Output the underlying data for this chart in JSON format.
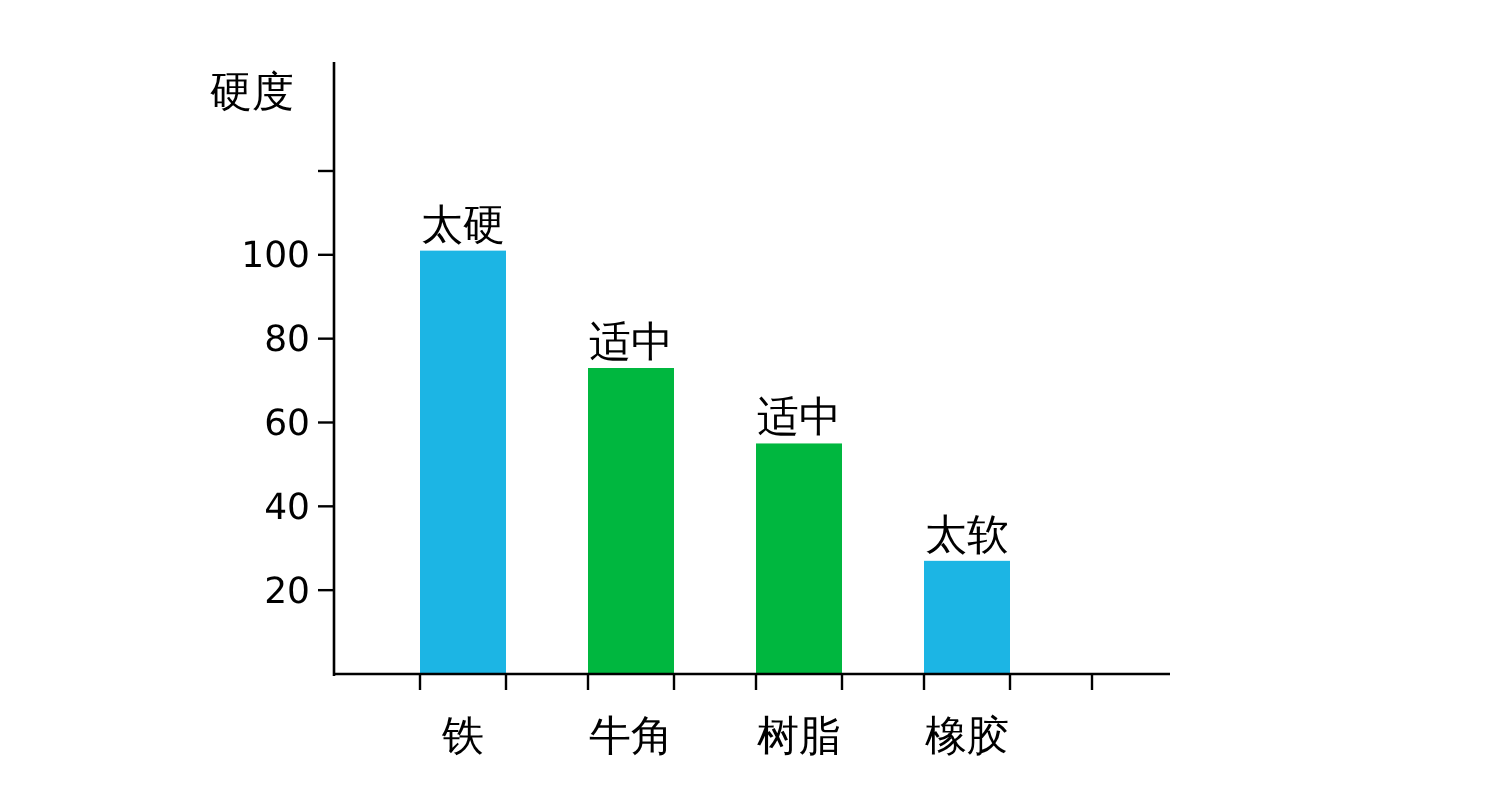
{
  "chart_data": {
    "type": "bar",
    "ylabel": "硬度",
    "categories": [
      "铁",
      "牛角",
      "树脂",
      "橡胶"
    ],
    "values": [
      101,
      73,
      55,
      27
    ],
    "colors": [
      "#1cb5e4",
      "#00b73f",
      "#00b73f",
      "#1cb5e4"
    ],
    "value_labels": [
      "太硬",
      "适中",
      "适中",
      "太软"
    ],
    "ylim": [
      0,
      146
    ],
    "yticks": [
      20,
      40,
      60,
      80,
      100,
      {
        "value": 120,
        "label": null
      }
    ],
    "grid": false
  }
}
